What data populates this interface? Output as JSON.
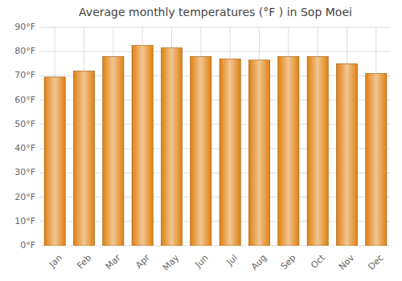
{
  "chart_data": {
    "type": "bar",
    "title": "Average monthly temperatures (°F ) in Sop Moei",
    "categories": [
      "Jan",
      "Feb",
      "Mar",
      "Apr",
      "May",
      "Jun",
      "Jul",
      "Aug",
      "Sep",
      "Oct",
      "Nov",
      "Dec"
    ],
    "values": [
      69.5,
      72.0,
      78.0,
      82.5,
      81.5,
      78.0,
      77.0,
      76.5,
      78.0,
      78.0,
      75.0,
      71.0
    ],
    "color": "#E08010",
    "ylim": [
      0,
      90
    ],
    "yticks": [
      {
        "value": 0,
        "label": "0°F"
      },
      {
        "value": 10,
        "label": "10°F"
      },
      {
        "value": 20,
        "label": "20°F"
      },
      {
        "value": 30,
        "label": "30°F"
      },
      {
        "value": 40,
        "label": "40°F"
      },
      {
        "value": 50,
        "label": "50°F"
      },
      {
        "value": 60,
        "label": "60°F"
      },
      {
        "value": 70,
        "label": "70°F"
      },
      {
        "value": 80,
        "label": "80°F"
      },
      {
        "value": 90,
        "label": "90°F"
      }
    ],
    "grid": true
  }
}
